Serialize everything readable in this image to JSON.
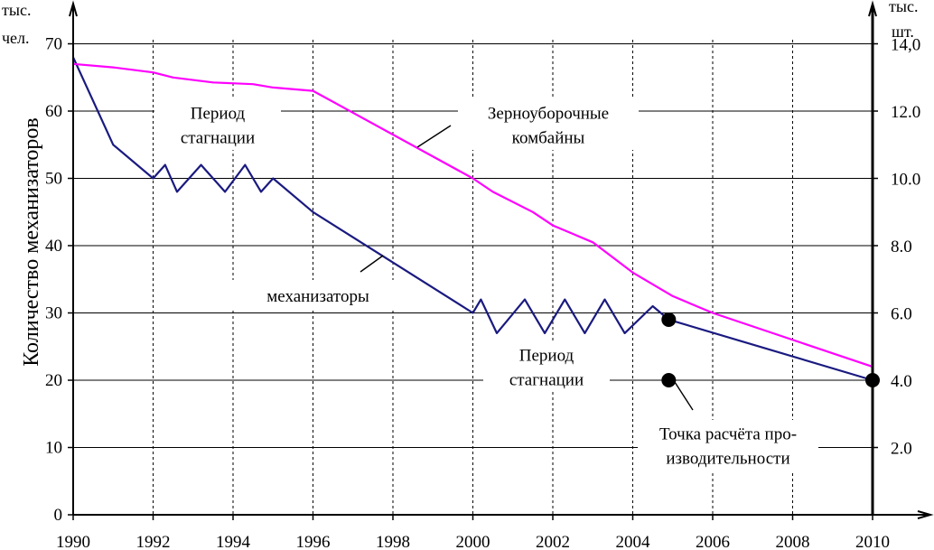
{
  "chart_data": {
    "type": "line",
    "title": "",
    "ylabel": "Количество механизаторов",
    "y_unit_left": [
      "тыс.",
      "чел."
    ],
    "y_unit_right": [
      "тыс.",
      "шт."
    ],
    "x_ticks": [
      "1990",
      "1992",
      "1994",
      "1996",
      "1998",
      "2000",
      "2002",
      "2004",
      "2006",
      "2008",
      "2010"
    ],
    "y_ticks_left": [
      "0",
      "10",
      "20",
      "30",
      "40",
      "50",
      "60",
      "70"
    ],
    "y_ticks_right": [
      "2.0",
      "4.0",
      "6.0",
      "8.0",
      "10.0",
      "12.0",
      "14,0"
    ],
    "xlim": [
      1990,
      2010.6
    ],
    "ylim_left": [
      0,
      77
    ],
    "ylim_right": [
      0,
      15.4
    ],
    "grid": true,
    "series": [
      {
        "name": "механизаторы",
        "axis": "left",
        "color": "#1a1a80",
        "x": [
          1990,
          1991,
          1992,
          1992.3,
          1992.6,
          1993.2,
          1993.8,
          1994.3,
          1994.7,
          1995,
          1996,
          2000,
          2000.2,
          2000.6,
          2001.3,
          2001.8,
          2002.3,
          2002.8,
          2003.3,
          2003.8,
          2004.5,
          2004.9,
          2010
        ],
        "values": [
          68,
          55,
          50,
          52,
          48,
          52,
          48,
          52,
          48,
          50,
          45,
          30,
          32,
          27,
          32,
          27,
          32,
          27,
          32,
          27,
          31,
          29,
          20
        ]
      },
      {
        "name": "Зерноуборочные комбайны",
        "axis": "right",
        "color": "#ff00ff",
        "x": [
          1990,
          1991,
          1992,
          1992.5,
          1993.5,
          1994.5,
          1995,
          1996,
          2000,
          2000.5,
          2001.5,
          2002,
          2003,
          2004,
          2005,
          2006,
          2010
        ],
        "values": [
          13.4,
          13.3,
          13.15,
          13.0,
          12.85,
          12.8,
          12.7,
          12.6,
          10.0,
          9.6,
          9.0,
          8.6,
          8.1,
          7.2,
          6.5,
          6.0,
          4.4
        ]
      }
    ],
    "markers": [
      {
        "x": 2004.9,
        "y": 29,
        "axis": "left"
      },
      {
        "x": 2010,
        "y": 20,
        "axis": "left"
      }
    ],
    "legend_marker": {
      "x": 2004.9,
      "y": 20,
      "axis": "left"
    },
    "annotations": [
      {
        "id": "stagnation-1",
        "lines": [
          "Период",
          "стагнации"
        ]
      },
      {
        "id": "combines",
        "lines": [
          "Зерноуборочные",
          "комбайны"
        ]
      },
      {
        "id": "mechanizers",
        "lines": [
          "механизаторы"
        ]
      },
      {
        "id": "stagnation-2",
        "lines": [
          "Период",
          "стагнации"
        ]
      },
      {
        "id": "calc-point",
        "lines": [
          "Точка расчёта про-",
          "изводительности"
        ]
      }
    ]
  }
}
